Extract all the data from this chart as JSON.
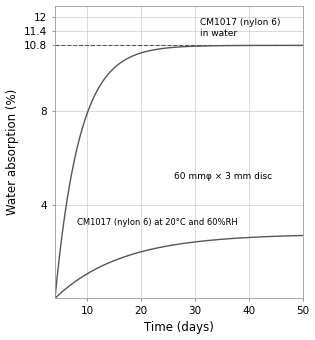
{
  "title": "",
  "xlabel": "Time (days)",
  "ylabel": "Water absorption (%)",
  "xlim": [
    4,
    50
  ],
  "ylim": [
    0,
    12.5
  ],
  "yticks_main": [
    4,
    8,
    12
  ],
  "yticks_extra": [
    10.8,
    11.4
  ],
  "xticks": [
    10,
    20,
    30,
    40,
    50
  ],
  "dashed_y": 10.8,
  "curve_color": "#555555",
  "annotation_water": "CM1017 (nylon 6)\nin water",
  "annotation_disc": "60 mmφ × 3 mm disc",
  "annotation_rh": "CM1017 (nylon 6) at 20°C and 60%RH",
  "background_color": "#ffffff",
  "grid_color": "#cccccc",
  "sat_water": 10.8,
  "k_water": 0.22,
  "sat_rh": 2.75,
  "k_rh": 0.08
}
